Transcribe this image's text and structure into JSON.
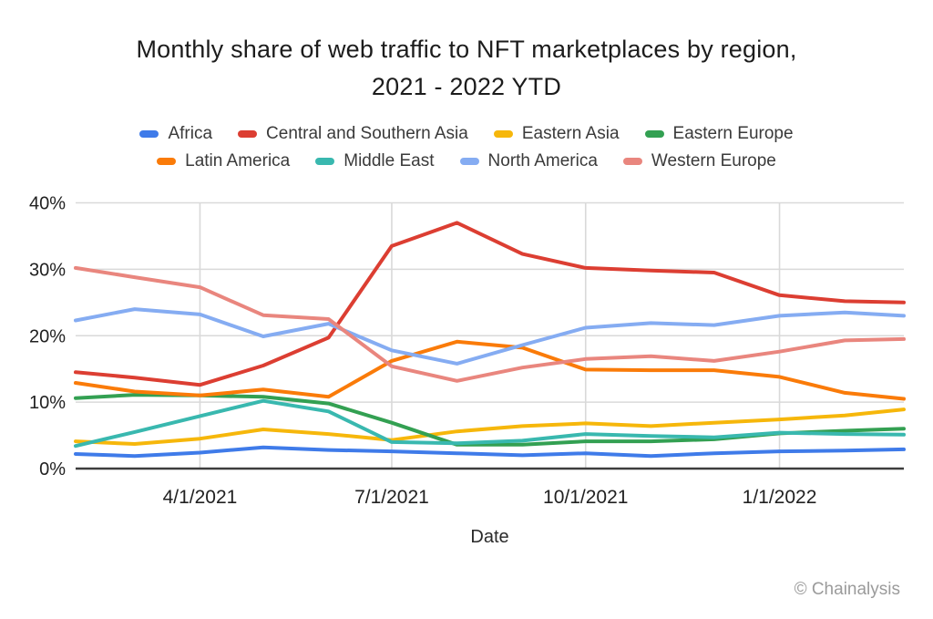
{
  "title": {
    "line1": "Monthly share of web traffic to NFT marketplaces by region,",
    "line2": "2021 - 2022 YTD"
  },
  "footer": {
    "copyright": "© Chainalysis"
  },
  "chart_data": {
    "type": "line",
    "title": "Monthly share of web traffic to NFT marketplaces by region, 2021 - 2022 YTD",
    "xlabel": "Date",
    "ylabel": "",
    "ylim": [
      0,
      40
    ],
    "grid": true,
    "legend_position": "top",
    "legend_split": 4,
    "x": [
      "2/1/2021",
      "3/1/2021",
      "4/1/2021",
      "5/1/2021",
      "6/1/2021",
      "7/1/2021",
      "8/1/2021",
      "9/1/2021",
      "10/1/2021",
      "11/1/2021",
      "12/1/2021",
      "1/1/2022",
      "2/1/2022",
      "3/1/2022"
    ],
    "xtick_labels": [
      "4/1/2021",
      "7/1/2021",
      "10/1/2021",
      "1/1/2022"
    ],
    "ytick_values": [
      0,
      10,
      20,
      30,
      40
    ],
    "ytick_labels": [
      "0%",
      "10%",
      "20%",
      "30%",
      "40%"
    ],
    "colors": {
      "gridline": "#d9d9d9",
      "axis_line": "#3d3d3d",
      "tick_text": "#212121"
    },
    "series": [
      {
        "name": "Africa",
        "color": "#3f7be9",
        "values": [
          2.2,
          1.9,
          2.4,
          3.2,
          2.8,
          2.6,
          2.3,
          2.0,
          2.3,
          1.9,
          2.3,
          2.6,
          2.7,
          2.9
        ]
      },
      {
        "name": "Central and Southern Asia",
        "color": "#dc3e32",
        "values": [
          14.5,
          13.7,
          12.6,
          15.5,
          19.7,
          33.5,
          37.0,
          32.3,
          30.2,
          29.8,
          29.5,
          26.1,
          25.2,
          25.0
        ]
      },
      {
        "name": "Eastern Asia",
        "color": "#f6b70b",
        "values": [
          4.1,
          3.7,
          4.5,
          5.9,
          5.2,
          4.3,
          5.6,
          6.4,
          6.8,
          6.4,
          6.9,
          7.4,
          8.0,
          8.9
        ]
      },
      {
        "name": "Eastern Europe",
        "color": "#33a052",
        "values": [
          10.6,
          11.1,
          11.0,
          10.8,
          9.8,
          6.9,
          3.6,
          3.6,
          4.1,
          4.1,
          4.4,
          5.3,
          5.7,
          6.0
        ]
      },
      {
        "name": "Latin America",
        "color": "#fa7b09",
        "values": [
          12.9,
          11.6,
          11.0,
          11.9,
          10.8,
          16.2,
          19.1,
          18.2,
          14.9,
          14.8,
          14.8,
          13.8,
          11.4,
          10.5
        ]
      },
      {
        "name": "Middle East",
        "color": "#39b8af",
        "values": [
          3.4,
          5.5,
          7.9,
          10.2,
          8.6,
          4.0,
          3.8,
          4.2,
          5.2,
          4.9,
          4.7,
          5.4,
          5.2,
          5.1
        ]
      },
      {
        "name": "North America",
        "color": "#85acf2",
        "values": [
          22.3,
          24.0,
          23.2,
          19.9,
          21.8,
          17.8,
          15.8,
          18.6,
          21.2,
          21.9,
          21.6,
          23.0,
          23.5,
          23.0
        ]
      },
      {
        "name": "Western Europe",
        "color": "#e9867e",
        "values": [
          30.2,
          28.8,
          27.3,
          23.1,
          22.5,
          15.4,
          13.2,
          15.2,
          16.5,
          16.9,
          16.2,
          17.6,
          19.3,
          19.5
        ]
      }
    ]
  }
}
